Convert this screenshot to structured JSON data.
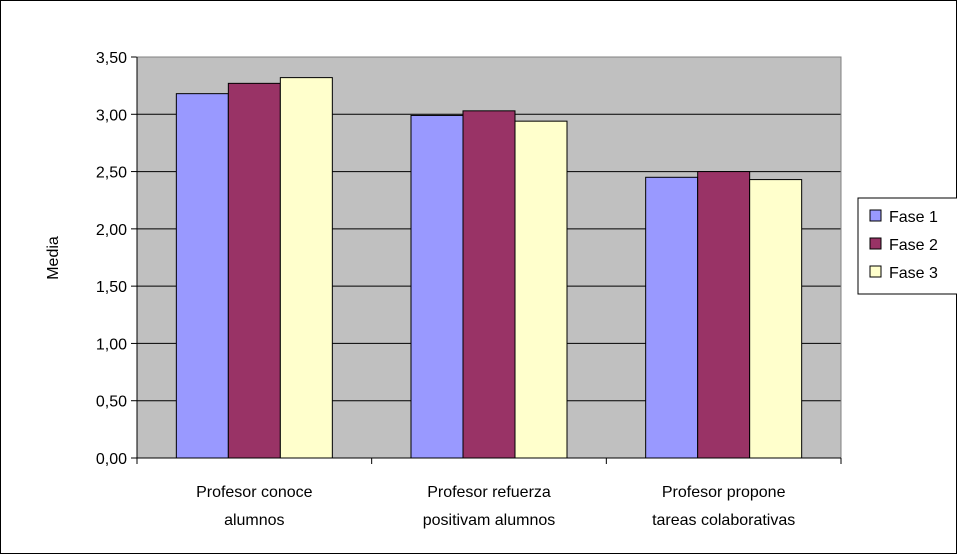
{
  "chart_data": {
    "type": "bar",
    "title": "",
    "xlabel": "",
    "ylabel": "Media",
    "ylim": [
      0,
      3.5
    ],
    "y_ticks": [
      "0,00",
      "0,50",
      "1,00",
      "1,50",
      "2,00",
      "2,50",
      "3,00",
      "3,50"
    ],
    "grid": true,
    "legend_position": "right",
    "categories": [
      [
        "Profesor conoce",
        "alumnos"
      ],
      [
        "Profesor refuerza",
        "positivam alumnos"
      ],
      [
        "Profesor propone",
        "tareas colaborativas"
      ]
    ],
    "series": [
      {
        "name": "Fase 1",
        "color": "#9999ff",
        "values": [
          3.18,
          2.99,
          2.45
        ]
      },
      {
        "name": "Fase 2",
        "color": "#993366",
        "values": [
          3.27,
          3.03,
          2.5
        ]
      },
      {
        "name": "Fase 3",
        "color": "#ffffcc",
        "values": [
          3.32,
          2.94,
          2.43
        ]
      }
    ],
    "colors": {
      "plot_background": "#c0c0c0",
      "border": "#000000",
      "gridline": "#000000"
    }
  }
}
